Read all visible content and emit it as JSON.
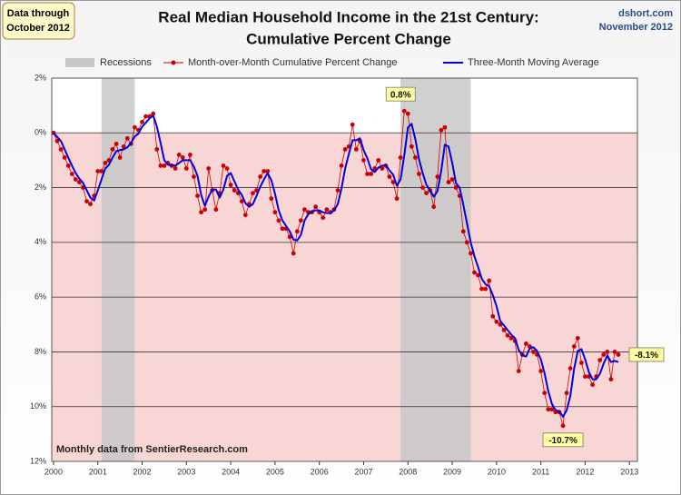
{
  "chart_data": {
    "type": "line",
    "title": [
      "Real Median Household Income in the 21st Century:",
      "Cumulative Percent Change"
    ],
    "note_box": [
      "Data through",
      "October 2012"
    ],
    "source": [
      "dshort.com",
      "November 2012"
    ],
    "footnote": "Monthly data from SentierResearch.com",
    "xlim": [
      1999.96,
      2013.18
    ],
    "xticks": [
      2000,
      2001,
      2002,
      2003,
      2004,
      2005,
      2006,
      2007,
      2008,
      2009,
      2010,
      2011,
      2012,
      2013
    ],
    "ylim": [
      -12,
      2
    ],
    "yticks": [
      {
        "value": -12,
        "label": "12%"
      },
      {
        "value": -10,
        "label": "10%"
      },
      {
        "value": -8,
        "label": "8%"
      },
      {
        "value": -6,
        "label": "6%"
      },
      {
        "value": -4,
        "label": "4%"
      },
      {
        "value": -2,
        "label": "2%"
      },
      {
        "value": 0,
        "label": "0%"
      },
      {
        "value": 2,
        "label": "2%"
      }
    ],
    "grid": true,
    "recessions": {
      "name": "Recessions",
      "color": "#c8c8c8",
      "spans": [
        [
          2001.083,
          2001.833
        ],
        [
          2007.833,
          2009.417
        ]
      ]
    },
    "x": [
      2000,
      2000.083,
      2000.167,
      2000.25,
      2000.333,
      2000.417,
      2000.5,
      2000.583,
      2000.667,
      2000.75,
      2000.833,
      2000.917,
      2001,
      2001.083,
      2001.167,
      2001.25,
      2001.333,
      2001.417,
      2001.5,
      2001.583,
      2001.667,
      2001.75,
      2001.833,
      2001.917,
      2002,
      2002.083,
      2002.167,
      2002.25,
      2002.333,
      2002.417,
      2002.5,
      2002.583,
      2002.667,
      2002.75,
      2002.833,
      2002.917,
      2003,
      2003.083,
      2003.167,
      2003.25,
      2003.333,
      2003.417,
      2003.5,
      2003.583,
      2003.667,
      2003.75,
      2003.833,
      2003.917,
      2004,
      2004.083,
      2004.167,
      2004.25,
      2004.333,
      2004.417,
      2004.5,
      2004.583,
      2004.667,
      2004.75,
      2004.833,
      2004.917,
      2005,
      2005.083,
      2005.167,
      2005.25,
      2005.333,
      2005.417,
      2005.5,
      2005.583,
      2005.667,
      2005.75,
      2005.833,
      2005.917,
      2006,
      2006.083,
      2006.167,
      2006.25,
      2006.333,
      2006.417,
      2006.5,
      2006.583,
      2006.667,
      2006.75,
      2006.833,
      2006.917,
      2007,
      2007.083,
      2007.167,
      2007.25,
      2007.333,
      2007.417,
      2007.5,
      2007.583,
      2007.667,
      2007.75,
      2007.833,
      2007.917,
      2008,
      2008.083,
      2008.167,
      2008.25,
      2008.333,
      2008.417,
      2008.5,
      2008.583,
      2008.667,
      2008.75,
      2008.833,
      2008.917,
      2009,
      2009.083,
      2009.167,
      2009.25,
      2009.333,
      2009.417,
      2009.5,
      2009.583,
      2009.667,
      2009.75,
      2009.833,
      2009.917,
      2010,
      2010.083,
      2010.167,
      2010.25,
      2010.333,
      2010.417,
      2010.5,
      2010.583,
      2010.667,
      2010.75,
      2010.833,
      2010.917,
      2011,
      2011.083,
      2011.167,
      2011.25,
      2011.333,
      2011.417,
      2011.5,
      2011.583,
      2011.667,
      2011.75,
      2011.833,
      2011.917,
      2012,
      2012.083,
      2012.167,
      2012.25,
      2012.333,
      2012.417,
      2012.5,
      2012.583,
      2012.667,
      2012.75
    ],
    "series": [
      {
        "name": "Month-over-Month Cumulative Percent Change",
        "color": "#cc0000",
        "values": [
          0,
          -0.3,
          -0.6,
          -0.9,
          -1.2,
          -1.5,
          -1.7,
          -1.8,
          -2.0,
          -2.5,
          -2.6,
          -2.3,
          -1.4,
          -1.4,
          -1.1,
          -1.0,
          -0.6,
          -0.4,
          -0.9,
          -0.5,
          -0.2,
          -0.4,
          0.2,
          0.1,
          0.4,
          0.6,
          0.6,
          0.7,
          -0.6,
          -1.2,
          -1.2,
          -1.1,
          -1.2,
          -1.3,
          -0.8,
          -0.9,
          -1.3,
          -0.8,
          -1.6,
          -2.3,
          -2.9,
          -2.8,
          -1.3,
          -2.1,
          -2.8,
          -2.2,
          -1.2,
          -1.3,
          -1.9,
          -2.1,
          -2.2,
          -2.5,
          -3.0,
          -2.6,
          -2.2,
          -2.1,
          -1.6,
          -1.4,
          -1.4,
          -2.4,
          -2.9,
          -3.2,
          -3.5,
          -3.5,
          -3.8,
          -4.4,
          -3.6,
          -3.2,
          -2.8,
          -2.9,
          -2.9,
          -2.7,
          -2.9,
          -3.1,
          -2.8,
          -2.9,
          -2.8,
          -2.1,
          -1.2,
          -0.6,
          -0.5,
          0.3,
          -0.6,
          -0.3,
          -1.0,
          -1.5,
          -1.5,
          -1.3,
          -1.0,
          -1.3,
          -1.2,
          -1.6,
          -1.8,
          -2.4,
          -0.9,
          0.8,
          0.7,
          -0.5,
          -0.9,
          -1.5,
          -2.0,
          -2.2,
          -2.1,
          -2.7,
          -1.6,
          0.1,
          0.2,
          -1.8,
          -1.7,
          -2.0,
          -2.3,
          -3.6,
          -4.0,
          -4.4,
          -5.1,
          -5.2,
          -5.7,
          -5.7,
          -5.4,
          -6.7,
          -6.9,
          -7.0,
          -7.2,
          -7.4,
          -7.5,
          -7.6,
          -8.7,
          -8.1,
          -7.7,
          -7.8,
          -8.0,
          -8.1,
          -8.7,
          -9.5,
          -10.1,
          -10.1,
          -10.2,
          -10.2,
          -10.7,
          -9.5,
          -8.6,
          -7.8,
          -7.5,
          -8.4,
          -8.9,
          -8.9,
          -9.2,
          -8.9,
          -8.3,
          -8.1,
          -8.0,
          -9.0,
          -8.0,
          -8.1
        ],
        "value_labels": [
          null,
          null,
          null,
          null,
          null,
          null,
          null,
          null,
          null,
          null,
          null,
          null,
          null,
          null,
          null,
          null,
          null,
          null,
          null,
          null,
          null,
          null,
          null,
          null,
          null,
          null,
          null,
          null,
          null,
          null,
          null,
          null,
          null,
          null,
          null,
          null,
          null,
          null,
          null,
          null,
          null,
          null,
          null,
          null,
          null,
          null,
          null,
          null,
          null,
          null,
          null,
          null,
          null,
          null,
          null,
          null,
          null,
          null,
          null,
          null,
          null,
          null,
          null,
          null,
          null,
          null,
          null,
          null,
          null,
          null,
          null,
          null,
          null,
          null,
          null,
          null,
          null,
          null,
          null,
          null,
          null,
          null,
          null,
          null,
          null,
          null,
          null,
          null,
          null,
          null,
          null,
          null,
          null,
          null,
          null,
          "0.8%",
          null,
          null,
          null,
          null,
          null,
          null,
          null,
          null,
          null,
          null,
          null,
          null,
          null,
          null,
          null,
          null,
          null,
          null,
          null,
          null,
          null,
          null,
          null,
          null,
          null,
          null,
          null,
          null,
          null,
          null,
          null,
          null,
          null,
          null,
          null,
          null,
          null,
          null,
          null,
          null,
          null,
          null,
          "-10.7%",
          null,
          null,
          null,
          null,
          null,
          null,
          null,
          null,
          null,
          null,
          null,
          null,
          null,
          null,
          "-8.1%"
        ]
      },
      {
        "name": "Three-Month Moving Average",
        "color": "#0000dd",
        "values": [
          0,
          -0.15,
          -0.3,
          -0.6,
          -0.9,
          -1.2,
          -1.47,
          -1.67,
          -1.83,
          -2.1,
          -2.37,
          -2.47,
          -2.1,
          -1.7,
          -1.3,
          -1.17,
          -0.9,
          -0.67,
          -0.63,
          -0.6,
          -0.53,
          -0.37,
          -0.13,
          -0.03,
          0.23,
          0.37,
          0.53,
          0.63,
          0.23,
          -0.37,
          -1.0,
          -1.17,
          -1.17,
          -1.2,
          -1.1,
          -1.0,
          -1.0,
          -1.0,
          -1.23,
          -1.57,
          -2.27,
          -2.67,
          -2.33,
          -2.07,
          -2.07,
          -2.37,
          -2.07,
          -1.57,
          -1.47,
          -1.77,
          -2.07,
          -2.27,
          -2.57,
          -2.7,
          -2.6,
          -2.3,
          -1.97,
          -1.7,
          -1.47,
          -1.73,
          -2.23,
          -2.83,
          -3.2,
          -3.4,
          -3.6,
          -3.9,
          -3.93,
          -3.73,
          -3.2,
          -2.97,
          -2.87,
          -2.83,
          -2.83,
          -2.9,
          -2.93,
          -2.93,
          -2.83,
          -2.6,
          -2.03,
          -1.3,
          -0.77,
          -0.27,
          -0.27,
          -0.2,
          -0.63,
          -0.93,
          -1.33,
          -1.43,
          -1.27,
          -1.2,
          -1.17,
          -1.37,
          -1.53,
          -1.93,
          -1.7,
          -0.83,
          0.2,
          0.33,
          -0.23,
          -0.97,
          -1.47,
          -1.9,
          -2.1,
          -2.33,
          -2.13,
          -1.4,
          -0.43,
          -0.5,
          -1.1,
          -1.83,
          -2.0,
          -2.63,
          -3.3,
          -4.0,
          -4.5,
          -4.9,
          -5.33,
          -5.53,
          -5.6,
          -5.93,
          -6.33,
          -6.87,
          -7.03,
          -7.2,
          -7.37,
          -7.5,
          -7.93,
          -8.13,
          -8.17,
          -7.87,
          -7.83,
          -7.97,
          -8.27,
          -8.77,
          -9.43,
          -9.9,
          -10.13,
          -10.17,
          -10.37,
          -10.13,
          -9.6,
          -8.63,
          -7.97,
          -7.9,
          -8.27,
          -8.73,
          -9.0,
          -9.0,
          -8.8,
          -8.43,
          -8.13,
          -8.37,
          -8.33,
          -8.37
        ]
      }
    ]
  }
}
